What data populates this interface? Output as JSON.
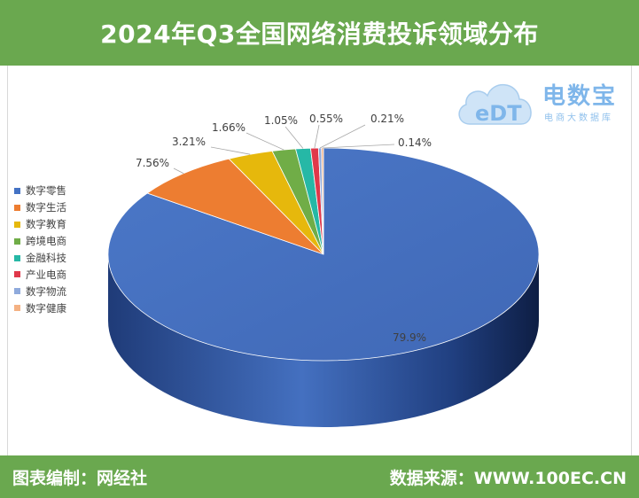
{
  "header": {
    "title": "2024年Q3全国网络消费投诉领域分布"
  },
  "footer": {
    "left": "图表编制：网经社",
    "right": "数据来源：WWW.100EC.CN"
  },
  "logo": {
    "name": "电数宝",
    "mark": "eDT",
    "subtitle": "电商大数据库"
  },
  "chart_data": {
    "type": "pie",
    "title": "2024年Q3全国网络消费投诉领域分布",
    "legend_position": "left",
    "categories": [
      "数字零售",
      "数字生活",
      "数字教育",
      "跨境电商",
      "金融科技",
      "产业电商",
      "数字物流",
      "数字健康"
    ],
    "values": [
      79.9,
      7.56,
      3.21,
      1.66,
      1.05,
      0.55,
      0.21,
      0.14
    ],
    "labels": [
      "79.9%",
      "7.56%",
      "3.21%",
      "1.66%",
      "1.05%",
      "0.55%",
      "0.21%",
      "0.14%"
    ],
    "colors": [
      "#4472c4",
      "#ed7d31",
      "#e6b80c",
      "#70ad47",
      "#26b8a6",
      "#e0384a",
      "#8faadc",
      "#f4b183"
    ]
  }
}
